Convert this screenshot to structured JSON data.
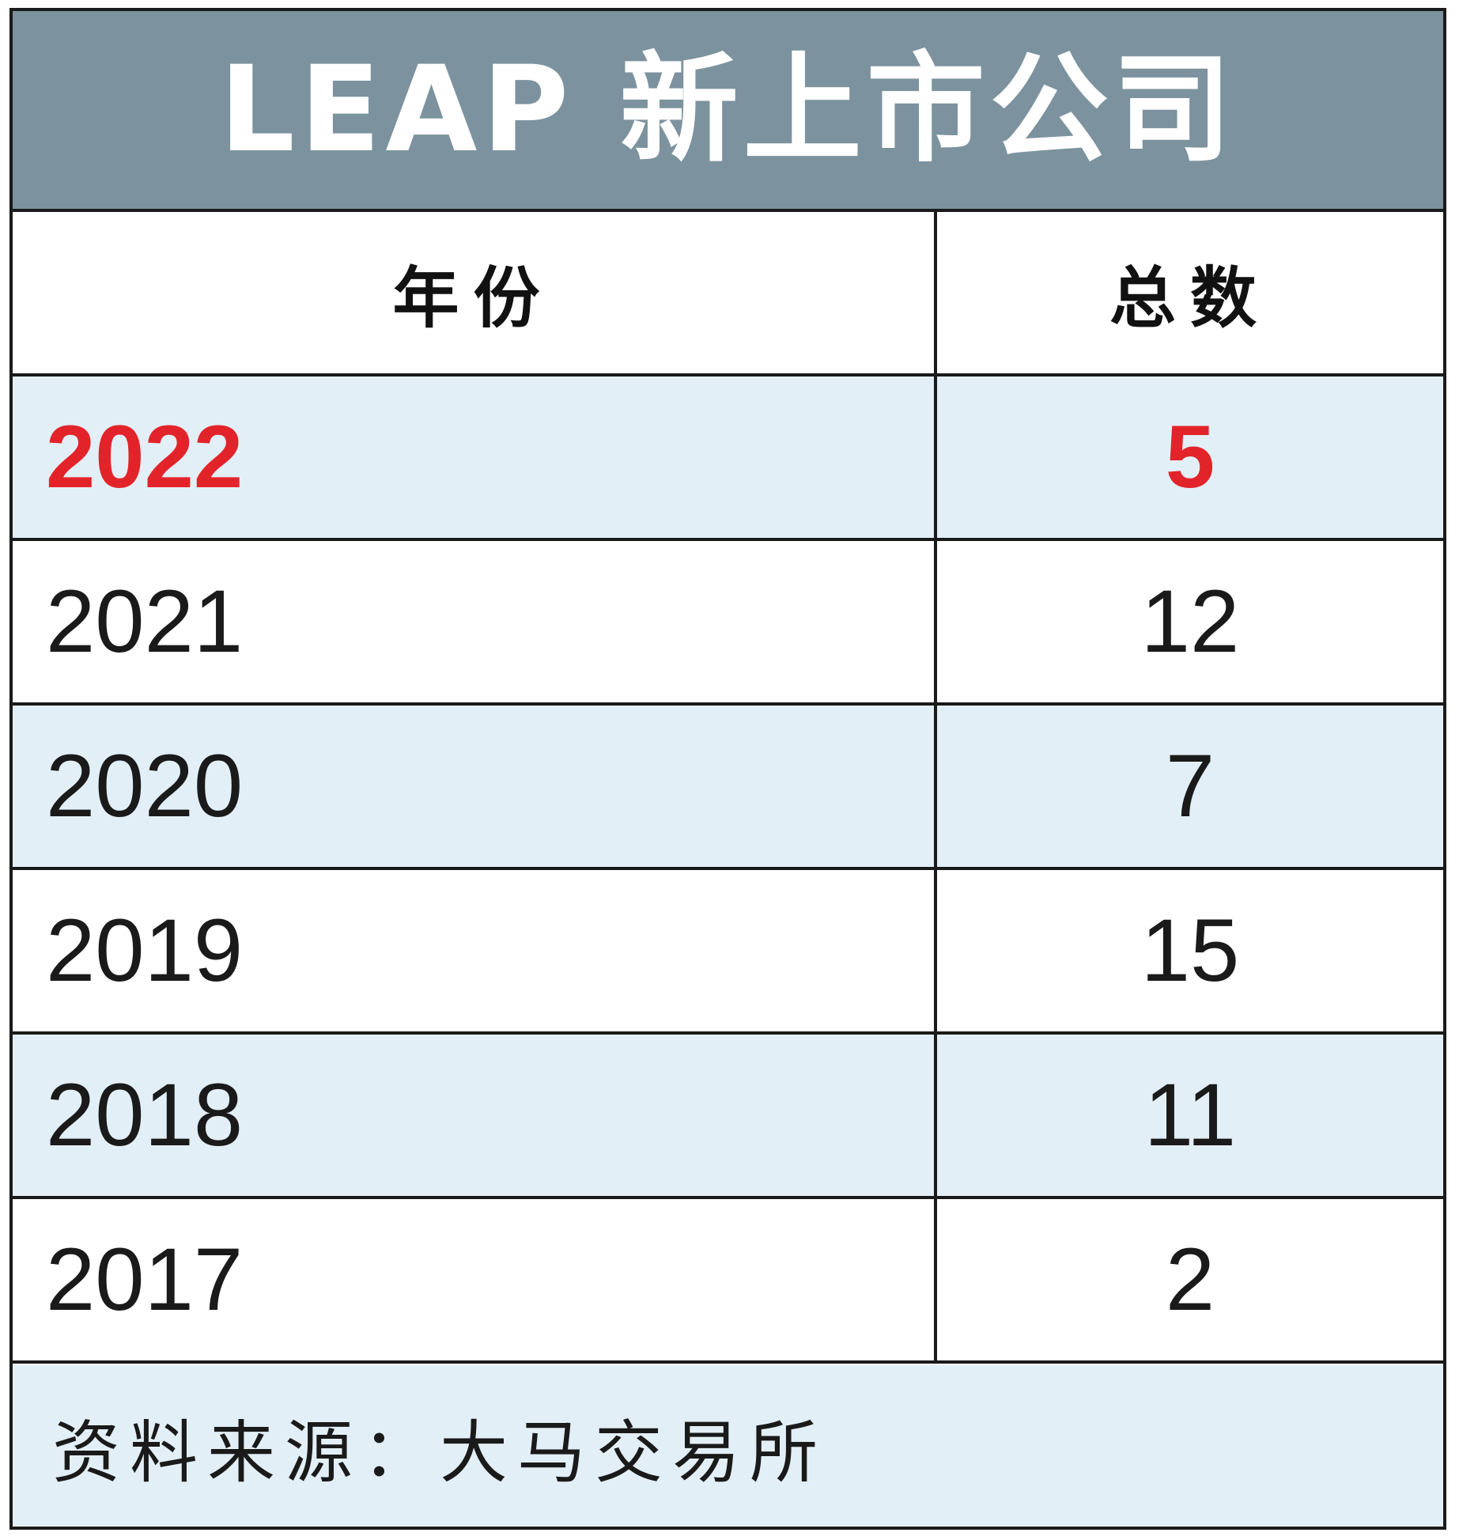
{
  "title": "LEAP 新上市公司",
  "header": {
    "year_label": "年份",
    "count_label": "总数"
  },
  "rows": [
    {
      "year": "2022",
      "count": "5",
      "highlight": true
    },
    {
      "year": "2021",
      "count": "12",
      "highlight": false
    },
    {
      "year": "2020",
      "count": "7",
      "highlight": false
    },
    {
      "year": "2019",
      "count": "15",
      "highlight": false
    },
    {
      "year": "2018",
      "count": "11",
      "highlight": false
    },
    {
      "year": "2017",
      "count": "2",
      "highlight": false
    }
  ],
  "source": "资料来源：大马交易所",
  "colors": {
    "title_bg": "#7c939f",
    "shaded_row": "#e3eff6",
    "highlight_text": "#e2242a",
    "text": "#1a1a1a"
  },
  "chart_data": {
    "type": "table",
    "title": "LEAP 新上市公司",
    "columns": [
      "年份",
      "总数"
    ],
    "rows": [
      [
        "2022",
        5
      ],
      [
        "2021",
        12
      ],
      [
        "2020",
        7
      ],
      [
        "2019",
        15
      ],
      [
        "2018",
        11
      ],
      [
        "2017",
        2
      ]
    ],
    "highlighted_row": "2022",
    "source": "资料来源：大马交易所"
  }
}
